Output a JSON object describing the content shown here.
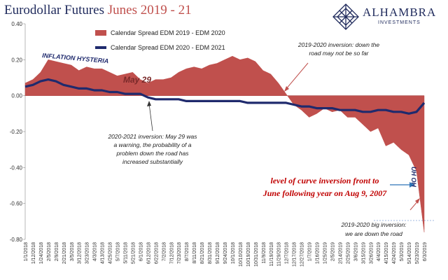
{
  "title": {
    "main": "Eurodollar Futures ",
    "accent": "Junes 2019 - 21"
  },
  "logo": {
    "name": "ALHAMBRA",
    "sub": "INVESTMENTS"
  },
  "chart_data": {
    "type": "area",
    "title": "Eurodollar Futures Junes 2019 - 21",
    "xlabel": "",
    "ylabel": "",
    "ylim": [
      -0.8,
      0.4
    ],
    "yticks": [
      "0.40",
      "0.20",
      "0.00",
      "-0.20",
      "-0.40",
      "-0.60",
      "-0.80"
    ],
    "ytick_values": [
      0.4,
      0.2,
      0.0,
      -0.2,
      -0.4,
      -0.6,
      -0.8
    ],
    "x_labels": [
      "1/1/2018",
      "1/12/2018",
      "1/24/2018",
      "2/5/2018",
      "2/9/2018",
      "2/21/2018",
      "3/5/2018",
      "3/12/2018",
      "3/23/2018",
      "4/3/2018",
      "4/13/2018",
      "4/25/2018",
      "5/7/2018",
      "5/11/2018",
      "5/21/2018",
      "6/1/2018",
      "6/12/2018",
      "6/22/2018",
      "7/2/2018",
      "7/12/2018",
      "7/23/2018",
      "8/7/2018",
      "8/11/2018",
      "8/21/2018",
      "8/31/2018",
      "9/12/2018",
      "9/24/2018",
      "10/1/2018",
      "10/10/2018",
      "10/19/2018",
      "10/31/2018",
      "11/9/2018",
      "11/19/2018",
      "11/29/2018",
      "12/7/2018",
      "12/17/2018",
      "12/27/2018",
      "1/7/2019",
      "1/16/2019",
      "1/25/2019",
      "2/5/2019",
      "2/14/2019",
      "2/25/2019",
      "3/6/2019",
      "3/15/2019",
      "3/26/2019",
      "4/4/2019",
      "4/15/2019",
      "4/24/2019",
      "5/3/2019",
      "5/14/2019",
      "5/23/2019",
      "6/3/2019"
    ],
    "series": [
      {
        "name": "Calendar Spread EDM 2019 - EDM 2020",
        "style": "area",
        "color": "#c0504d",
        "values": [
          0.07,
          0.09,
          0.13,
          0.2,
          0.19,
          0.18,
          0.17,
          0.14,
          0.16,
          0.15,
          0.15,
          0.13,
          0.11,
          0.12,
          0.13,
          0.09,
          0.07,
          0.09,
          0.09,
          0.1,
          0.13,
          0.15,
          0.16,
          0.15,
          0.17,
          0.18,
          0.2,
          0.22,
          0.2,
          0.21,
          0.19,
          0.14,
          0.12,
          0.07,
          0.01,
          -0.05,
          -0.08,
          -0.12,
          -0.1,
          -0.07,
          -0.09,
          -0.08,
          -0.12,
          -0.12,
          -0.16,
          -0.2,
          -0.18,
          -0.28,
          -0.26,
          -0.3,
          -0.33,
          -0.42,
          -0.76
        ]
      },
      {
        "name": "Calendar Spread EDM 2020 - EDM 2021",
        "style": "line",
        "color": "#1f2a6d",
        "values": [
          0.05,
          0.06,
          0.08,
          0.09,
          0.08,
          0.06,
          0.05,
          0.04,
          0.04,
          0.03,
          0.03,
          0.02,
          0.02,
          0.01,
          0.01,
          0.01,
          -0.01,
          -0.02,
          -0.02,
          -0.02,
          -0.02,
          -0.03,
          -0.03,
          -0.03,
          -0.03,
          -0.03,
          -0.03,
          -0.03,
          -0.03,
          -0.04,
          -0.04,
          -0.04,
          -0.04,
          -0.04,
          -0.04,
          -0.05,
          -0.06,
          -0.06,
          -0.07,
          -0.07,
          -0.07,
          -0.08,
          -0.08,
          -0.08,
          -0.09,
          -0.09,
          -0.08,
          -0.08,
          -0.09,
          -0.09,
          -0.1,
          -0.09,
          -0.04
        ]
      }
    ],
    "annotations": {
      "hysteria": "INFLATION HYSTERIA",
      "may29": "May 29",
      "inv1920_l1": "2019-2020 inversion: down the",
      "inv1920_l2": "road may not be so far",
      "inv2021_l1": "2020-2021 inversion: May 29 was",
      "inv2021_l2": "a warning, the probability of a",
      "inv2021_l3": "problem down the road has",
      "inv2021_l4": "increased substantially",
      "level_l1": "level of curve inversion front to",
      "level_l2": "June following year on Aug 9, 2007",
      "uhoh": "UH OH",
      "big_l1": "2019-2020 big inversion:",
      "big_l2": "we are down the road"
    }
  }
}
